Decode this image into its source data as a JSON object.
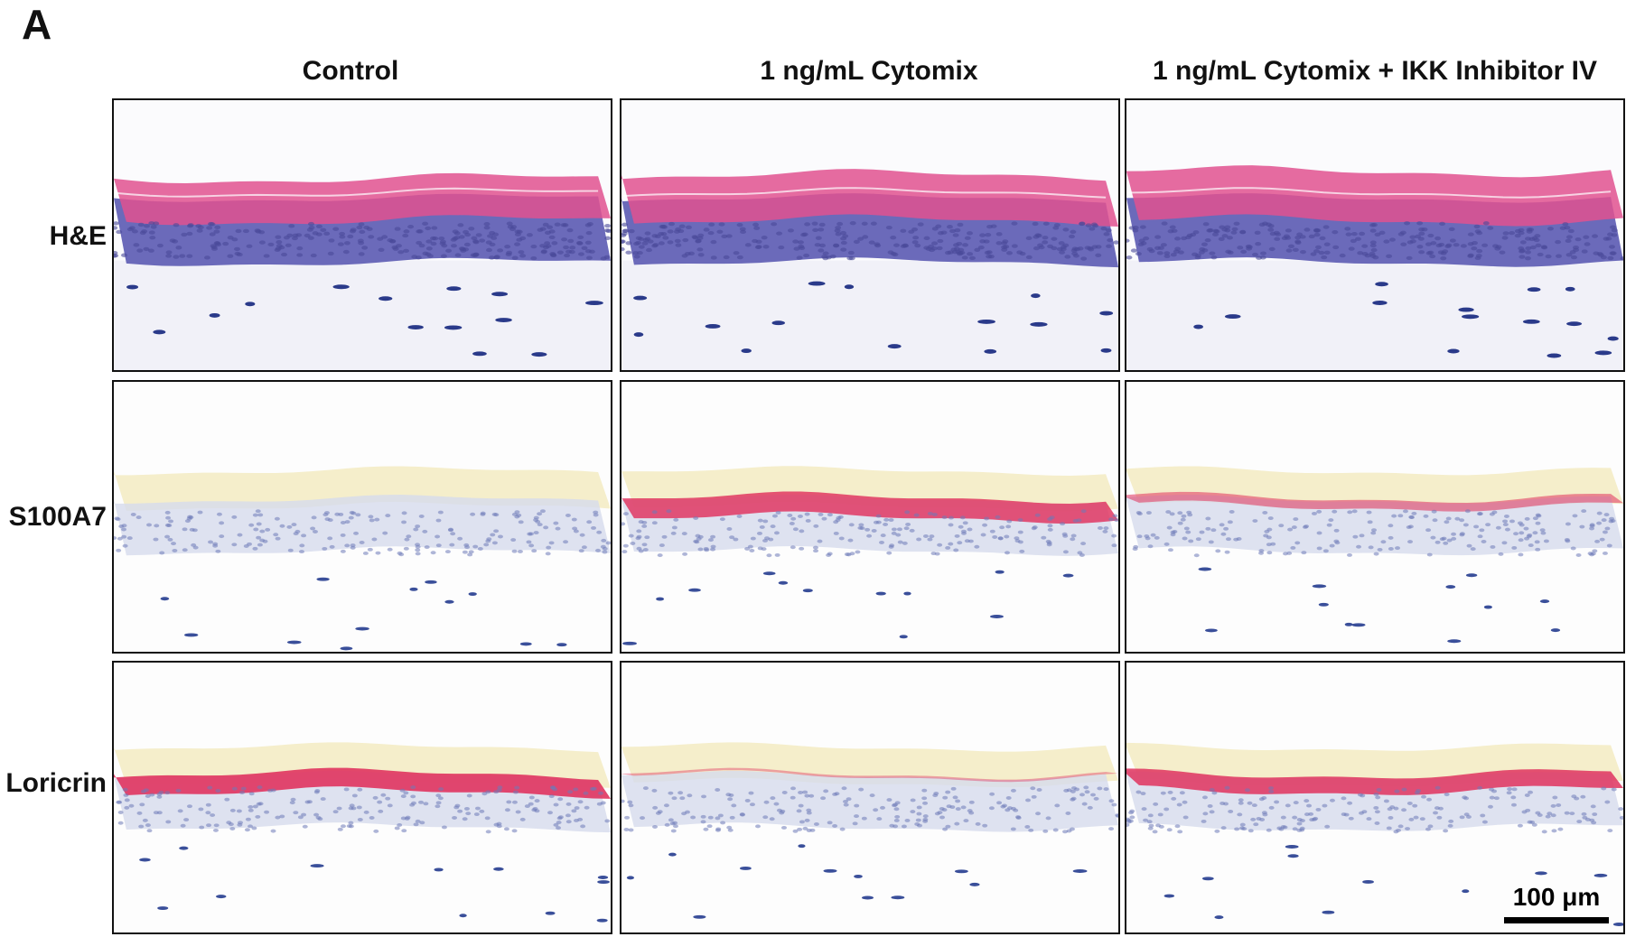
{
  "panel_label": "A",
  "columns": [
    {
      "label": "Control"
    },
    {
      "label": "1 ng/mL Cytomix"
    },
    {
      "label": "1 ng/mL Cytomix + IKK Inhibitor IV"
    }
  ],
  "rows": [
    {
      "label": "H&E",
      "stain": "he"
    },
    {
      "label": "S100A7",
      "stain": "ihc"
    },
    {
      "label": "Loricrin",
      "stain": "ihc"
    }
  ],
  "scale_bar": {
    "label": "100 μm"
  },
  "colors": {
    "he_cornified": "#e0518f",
    "he_epidermis": "#6b6aba",
    "he_dermis": "#f1f1f8",
    "ihc_cornified": "#f5eecb",
    "ihc_epidermis": "#d6dbec",
    "ihc_positive": "#e0345f",
    "nuclei": "#2a3a8a"
  },
  "staining_intensity": {
    "S100A7": [
      0.0,
      0.8,
      0.35
    ],
    "Loricrin": [
      0.95,
      0.12,
      0.85
    ]
  }
}
